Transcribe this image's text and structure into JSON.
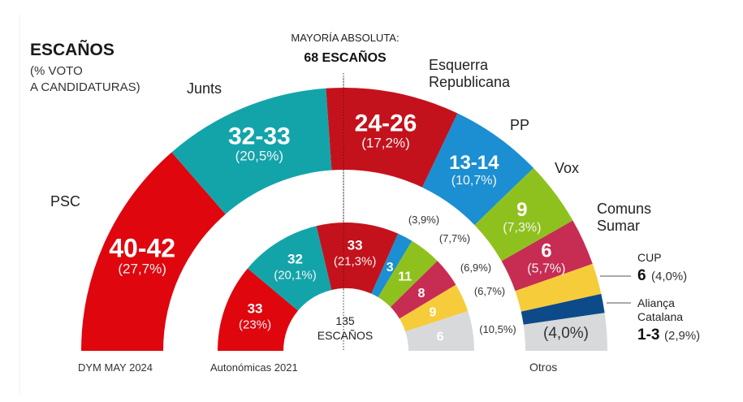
{
  "chart_data": {
    "type": "pie",
    "subtype": "double-semicircle-parliament",
    "title": "ESCAÑOS",
    "subtitle_lines": [
      "(% VOTO",
      "A CANDIDATURAS)"
    ],
    "majority_label_lines": [
      "MAYORÍA ABSOLUTA:",
      "68 ESCAÑOS"
    ],
    "total_seats_lines": [
      "135",
      "ESCAÑOS"
    ],
    "outer_ring": {
      "caption": "DYM MAY 2024",
      "segments": [
        {
          "party": "PSC",
          "name_lines": [
            "PSC"
          ],
          "seats_label": "40-42",
          "seats": 41,
          "vote_label": "(27,7%)",
          "vote_pct": 27.7,
          "color": "#e0060e",
          "end_deg": 49
        },
        {
          "party": "Junts",
          "name_lines": [
            "Junts"
          ],
          "seats_label": "32-33",
          "seats": 32.5,
          "vote_label": "(20,5%)",
          "vote_pct": 20.5,
          "color": "#13a4aa",
          "end_deg": 86
        },
        {
          "party": "Esquerra Republicana",
          "name_lines": [
            "Esquerra",
            "Republicana"
          ],
          "seats_label": "24-26",
          "seats": 25,
          "vote_label": "(17,2%)",
          "vote_pct": 17.2,
          "color": "#c4121c",
          "end_deg": 115.5
        },
        {
          "party": "PP",
          "name_lines": [
            "PP"
          ],
          "seats_label": "13-14",
          "seats": 13.5,
          "vote_label": "(10,7%)",
          "vote_pct": 10.7,
          "color": "#1b8fd2",
          "end_deg": 136
        },
        {
          "party": "Vox",
          "name_lines": [
            "Vox"
          ],
          "seats_label": "9",
          "seats": 9,
          "vote_label": "(7,3%)",
          "vote_pct": 7.3,
          "color": "#8fc11e",
          "end_deg": 150.3
        },
        {
          "party": "Comuns Sumar",
          "name_lines": [
            "Comuns",
            "Sumar"
          ],
          "seats_label": "6",
          "seats": 6,
          "vote_label": "(5,7%)",
          "vote_pct": 5.7,
          "color": "#c72c53",
          "end_deg": 160.7
        },
        {
          "party": "CUP",
          "name_lines": [
            "CUP"
          ],
          "seats_label": "6",
          "seats": 6,
          "vote_label": "(4,0%)",
          "vote_pct": 4.0,
          "color": "#f7cc3a",
          "end_deg": 167.5
        },
        {
          "party": "Aliança Catalana",
          "name_lines": [
            "Aliança",
            "Catalana"
          ],
          "seats_label": "1-3",
          "seats": 2,
          "vote_label": "(2,9%)",
          "vote_pct": 2.9,
          "color": "#0c4a8a",
          "end_deg": 171.7
        },
        {
          "party": "Otros",
          "name_lines": [
            "Otros"
          ],
          "seats_label": "",
          "seats": 0,
          "vote_label": "(4,0%)",
          "vote_pct": 4.0,
          "color": "#d8d9db",
          "end_deg": 180
        }
      ]
    },
    "inner_ring": {
      "caption": "Autonómicas 2021",
      "segments": [
        {
          "party": "PSC",
          "seats_label": "33",
          "seats": 33,
          "vote_label": "(23%)",
          "vote_pct": 23,
          "color": "#e0060e",
          "end_deg": 40
        },
        {
          "party": "Junts",
          "seats_label": "32",
          "seats": 32,
          "vote_label": "(20,1%)",
          "vote_pct": 20.1,
          "color": "#13a4aa",
          "end_deg": 76.7
        },
        {
          "party": "Esquerra Republicana",
          "seats_label": "33",
          "seats": 33,
          "vote_label": "(21,3%)",
          "vote_pct": 21.3,
          "color": "#c4121c",
          "end_deg": 114
        },
        {
          "party": "PP",
          "seats_label": "3",
          "seats": 3,
          "vote_label": "(3,9%)",
          "vote_pct": 3.9,
          "color": "#1b8fd2",
          "end_deg": 121
        },
        {
          "party": "Vox",
          "seats_label": "11",
          "seats": 11,
          "vote_label": "(7,7%)",
          "vote_pct": 7.7,
          "color": "#8fc11e",
          "end_deg": 135.5
        },
        {
          "party": "Comuns Sumar",
          "seats_label": "8",
          "seats": 8,
          "vote_label": "(6,9%)",
          "vote_pct": 6.9,
          "color": "#c72c53",
          "end_deg": 149
        },
        {
          "party": "CUP",
          "seats_label": "9",
          "seats": 9,
          "vote_label": "(6,7%)",
          "vote_pct": 6.7,
          "color": "#f7cc3a",
          "end_deg": 162
        },
        {
          "party": "Otros",
          "seats_label": "6",
          "seats": 6,
          "vote_label": "(10,5%)",
          "vote_pct": 10.5,
          "color": "#d8d9db",
          "end_deg": 180
        }
      ]
    }
  }
}
